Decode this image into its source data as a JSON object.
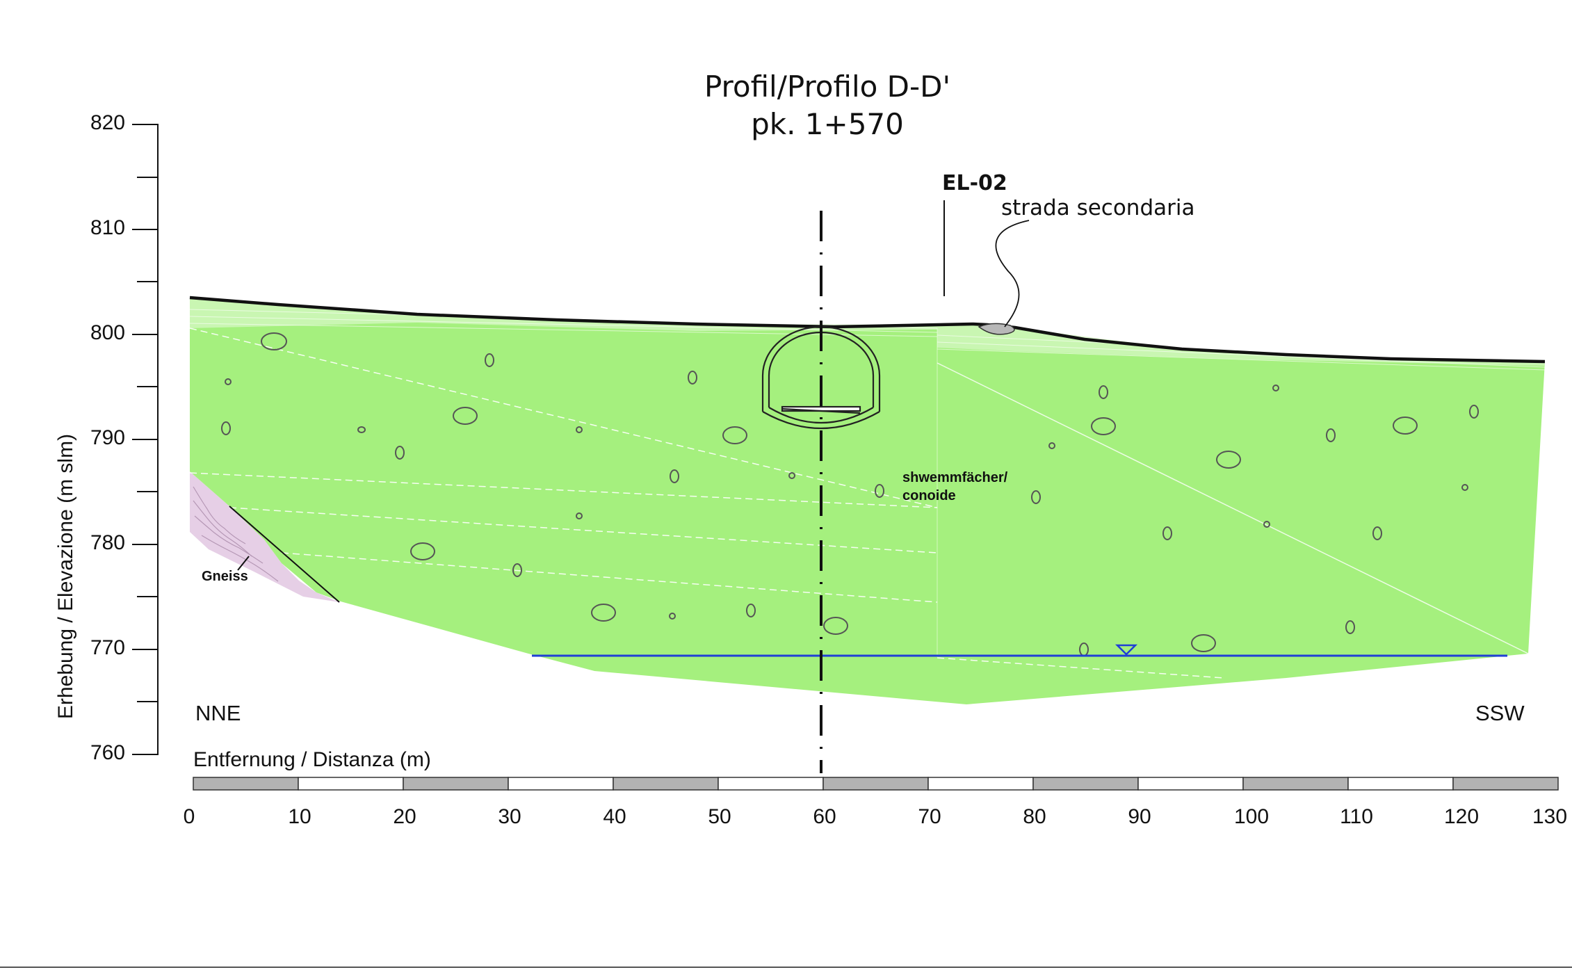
{
  "title": {
    "line1": "Profil/Profilo D-D'",
    "line2": "pk. 1+570"
  },
  "y_axis": {
    "label": "Erhebung / Elevazione  (m slm)",
    "ticks": [
      "820",
      "810",
      "800",
      "790",
      "780",
      "770",
      "760"
    ]
  },
  "x_axis": {
    "label": "Entfernung / Distanza  (m)",
    "ticks": [
      "0",
      "10",
      "20",
      "30",
      "40",
      "50",
      "60",
      "70",
      "80",
      "90",
      "100",
      "110",
      "120",
      "130"
    ]
  },
  "labels": {
    "borehole": "EL-02",
    "road": "strada secondaria",
    "deposit_line1": "shwemmfächer/",
    "deposit_line2": "conoide",
    "bedrock": "Gneiss",
    "left_direction": "NNE",
    "right_direction": "SSW"
  },
  "colors": {
    "deposit": "#a5f07e",
    "gneiss": "#e6cfe6",
    "groundwater": "#1f3fd6",
    "scale_dark": "#b3b3b3"
  }
}
